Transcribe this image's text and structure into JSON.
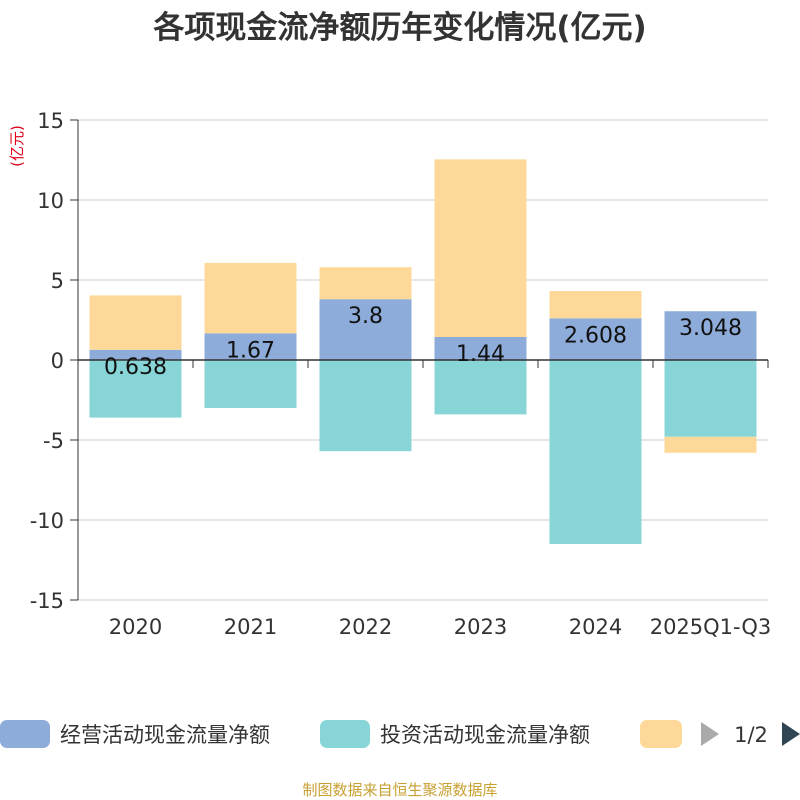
{
  "chart_data": {
    "type": "bar",
    "stacked": true,
    "title": "各项现金流净额历年变化情况(亿元)",
    "ylabel": "(亿元)",
    "xlabel": "",
    "ylim": [
      -15,
      15
    ],
    "yticks": [
      15,
      10,
      5,
      0,
      -5,
      -10,
      -15
    ],
    "ytick_labels": [
      "15",
      "10",
      "5",
      "0",
      "-5",
      "-10",
      "-15"
    ],
    "categories": [
      "2020",
      "2021",
      "2022",
      "2023",
      "2024",
      "2025Q1-Q3"
    ],
    "series": [
      {
        "name": "经营活动现金流量净额",
        "color": "#8eacd9",
        "values": [
          0.638,
          1.67,
          3.8,
          1.44,
          2.608,
          3.048
        ],
        "labels": [
          "0.638",
          "1.67",
          "3.8",
          "1.44",
          "2.608",
          "3.048"
        ]
      },
      {
        "name": "投资活动现金流量净额",
        "color": "#88d5d7",
        "values": [
          -3.6,
          -3.0,
          -5.7,
          -3.4,
          -11.5,
          -4.8
        ]
      },
      {
        "name": "",
        "color": "#fdd898",
        "values": [
          3.4,
          4.4,
          2.0,
          11.1,
          1.7,
          -1.0
        ]
      }
    ],
    "legend": {
      "position": "bottom",
      "page": "1/2"
    },
    "grid": true
  },
  "source": "制图数据来自恒生聚源数据库",
  "colors": {
    "title": "#333333",
    "axis_text": "#333333",
    "ylabel": "#e0001b",
    "grid": "#cccccc",
    "source": "#c8a032",
    "nav_prev": "#aaaaaa",
    "nav_next": "#2f4554"
  }
}
